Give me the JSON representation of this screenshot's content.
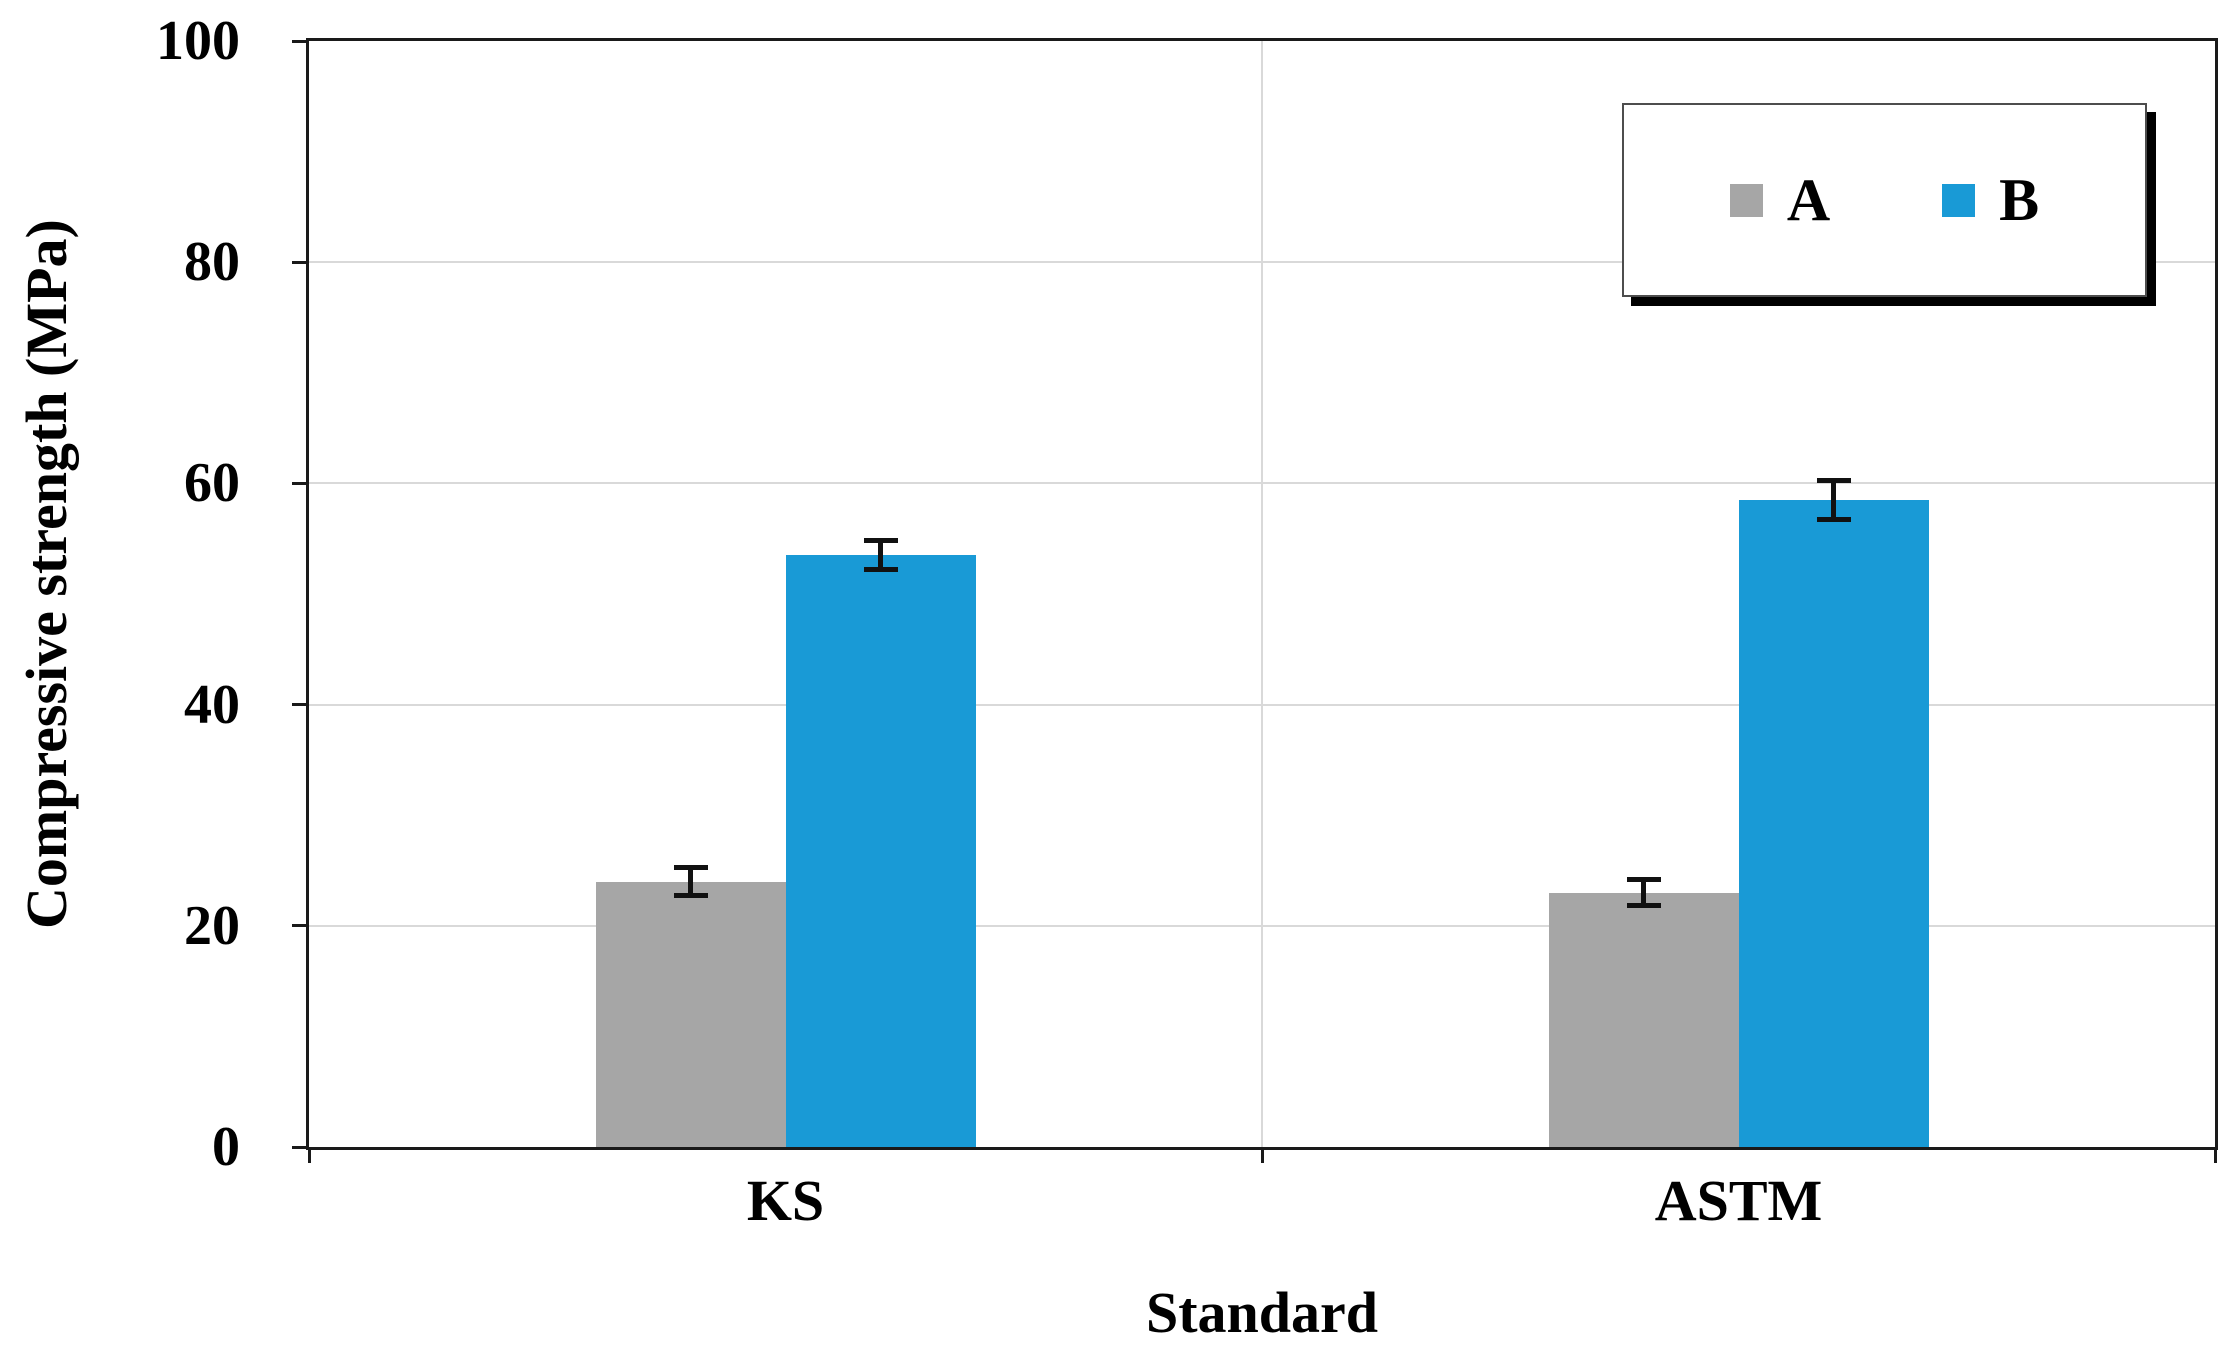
{
  "chart_data": {
    "type": "bar",
    "title": "",
    "xlabel": "Standard",
    "ylabel": "Compressive strength (MPa)",
    "categories": [
      "KS",
      "ASTM"
    ],
    "series": [
      {
        "name": "A",
        "color": "#a6a6a6",
        "values": [
          24,
          23
        ],
        "errors": [
          1.3,
          1.2
        ]
      },
      {
        "name": "B",
        "color": "#199ad6",
        "values": [
          53.5,
          58.5
        ],
        "errors": [
          1.3,
          1.8
        ]
      }
    ],
    "ylim": [
      0,
      100
    ],
    "yticks": [
      0,
      20,
      40,
      60,
      80,
      100
    ],
    "grid": "horizontal gridlines at 20/40/60/80 plus vertical category-boundary line at plot center; light gray",
    "error_bars": "black I-beam caps on every bar top",
    "legend_position": "top-right inside plot, white box with black drop shadow"
  },
  "colors": {
    "grid": "#d9d9d9",
    "plot_border": "#1a1a1a",
    "error_bar": "#111111",
    "background": "#ffffff",
    "series_a": "#a6a6a6",
    "series_b": "#199ad6"
  }
}
